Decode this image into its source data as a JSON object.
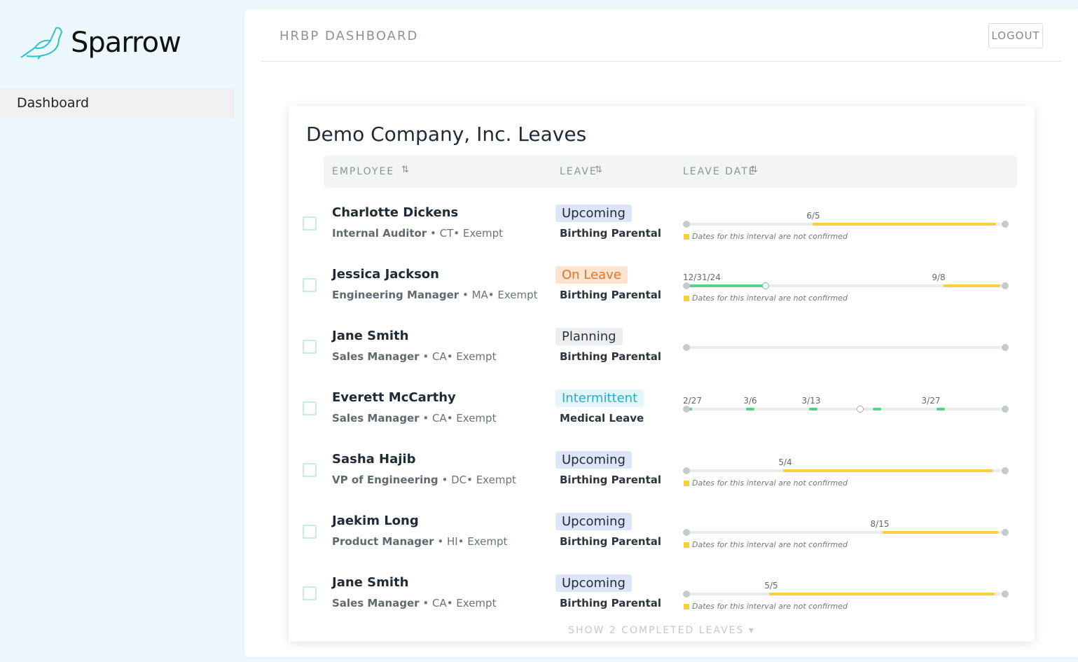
{
  "sidebar": {
    "brand": "Sparrow",
    "nav": [
      "Dashboard"
    ]
  },
  "header": {
    "title": "HRBP DASHBOARD",
    "logout": "LOGOUT"
  },
  "card": {
    "title": "Demo Company, Inc. Leaves",
    "columns": [
      "EMPLOYEE",
      "LEAVE",
      "LEAVE DATE"
    ],
    "rows": [
      {
        "name": "Charlotte Dickens",
        "role": "Internal Auditor",
        "meta": "• CT• Exempt",
        "status": "Upcoming",
        "leave_type": "Birthing Parental",
        "dates": [
          "6/5"
        ],
        "note": "Dates for this interval are not confirmed"
      },
      {
        "name": "Jessica Jackson",
        "role": "Engineering Manager",
        "meta": "• MA• Exempt",
        "status": "On Leave",
        "leave_type": "Birthing Parental",
        "dates": [
          "12/31/24",
          "9/8"
        ],
        "note": "Dates for this interval are not confirmed"
      },
      {
        "name": "Jane Smith",
        "role": "Sales Manager",
        "meta": "• CA• Exempt",
        "status": "Planning",
        "leave_type": "Birthing Parental",
        "dates": []
      },
      {
        "name": "Everett McCarthy",
        "role": "Sales Manager",
        "meta": "• CA• Exempt",
        "status": "Intermittent",
        "leave_type": "Medical Leave",
        "dates": [
          "2/27",
          "3/6",
          "3/13",
          "3/27"
        ]
      },
      {
        "name": "Sasha Hajib",
        "role": "VP of Engineering",
        "meta": "• DC• Exempt",
        "status": "Upcoming",
        "leave_type": "Birthing Parental",
        "dates": [
          "5/4"
        ],
        "note": "Dates for this interval are not confirmed"
      },
      {
        "name": "Jaekim Long",
        "role": "Product Manager",
        "meta": "• HI• Exempt",
        "status": "Upcoming",
        "leave_type": "Birthing Parental",
        "dates": [
          "8/15"
        ],
        "note": "Dates for this interval are not confirmed"
      },
      {
        "name": "Jane Smith",
        "role": "Sales Manager",
        "meta": "• CA• Exempt",
        "status": "Upcoming",
        "leave_type": "Birthing Parental",
        "dates": [
          "5/5"
        ],
        "note": "Dates for this interval are not confirmed"
      }
    ],
    "footer": "SHOW 2 COMPLETED LEAVES"
  }
}
